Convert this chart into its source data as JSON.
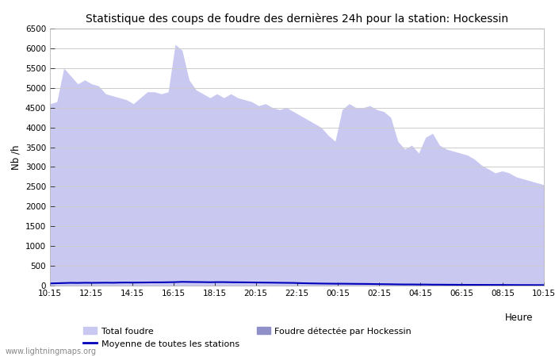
{
  "title": "Statistique des coups de foudre des dernières 24h pour la station: Hockessin",
  "xlabel": "Heure",
  "ylabel": "Nb /h",
  "ylim": [
    0,
    6500
  ],
  "background_color": "#ffffff",
  "grid_color": "#cccccc",
  "watermark": "www.lightningmaps.org",
  "legend_labels": [
    "Total foudre",
    "Moyenne de toutes les stations",
    "Foudre détectée par Hockessin"
  ],
  "total_foudre_color": "#c8c8f0",
  "hockessin_color": "#9090c8",
  "moyenne_color": "#0000bb",
  "x_ticks": [
    "10:15",
    "12:15",
    "14:15",
    "16:15",
    "18:15",
    "20:15",
    "22:15",
    "00:15",
    "02:15",
    "04:15",
    "06:15",
    "08:15",
    "10:15"
  ],
  "total_foudre": [
    4600,
    4650,
    5500,
    5300,
    5100,
    5200,
    5100,
    5050,
    4850,
    4800,
    4750,
    4700,
    4600,
    4750,
    4900,
    4900,
    4850,
    4900,
    6100,
    5950,
    5200,
    4950,
    4850,
    4750,
    4850,
    4750,
    4850,
    4750,
    4700,
    4650,
    4550,
    4600,
    4500,
    4450,
    4500,
    4400,
    4300,
    4200,
    4100,
    4000,
    3800,
    3650,
    4450,
    4600,
    4500,
    4500,
    4550,
    4450,
    4400,
    4250,
    3650,
    3450,
    3550,
    3350,
    3750,
    3850,
    3550,
    3450,
    3400,
    3350,
    3300,
    3200,
    3050,
    2950,
    2850,
    2900,
    2850,
    2750,
    2700,
    2650,
    2600,
    2550
  ],
  "moyenne": [
    55,
    60,
    65,
    70,
    68,
    72,
    70,
    72,
    74,
    72,
    76,
    78,
    76,
    78,
    80,
    82,
    82,
    85,
    88,
    95,
    92,
    90,
    88,
    85,
    88,
    88,
    85,
    83,
    82,
    80,
    78,
    76,
    74,
    72,
    70,
    68,
    62,
    58,
    55,
    52,
    50,
    48,
    48,
    46,
    44,
    43,
    41,
    38,
    36,
    34,
    31,
    29,
    29,
    27,
    27,
    24,
    24,
    22,
    22,
    20,
    19,
    19,
    18,
    18,
    17,
    17,
    16,
    15,
    14,
    14,
    13,
    13
  ],
  "hockessin": [
    3,
    3,
    3,
    3,
    3,
    3,
    3,
    3,
    3,
    3,
    3,
    3,
    3,
    3,
    3,
    3,
    3,
    3,
    3,
    3,
    3,
    3,
    3,
    3,
    3,
    3,
    3,
    3,
    3,
    3,
    3,
    3,
    3,
    3,
    3,
    3,
    3,
    3,
    3,
    3,
    3,
    3,
    3,
    3,
    3,
    3,
    3,
    3,
    3,
    3,
    3,
    3,
    3,
    3,
    3,
    3,
    3,
    3,
    3,
    3,
    3,
    3,
    3,
    3,
    3,
    3,
    3,
    3,
    3,
    3,
    3,
    3
  ]
}
